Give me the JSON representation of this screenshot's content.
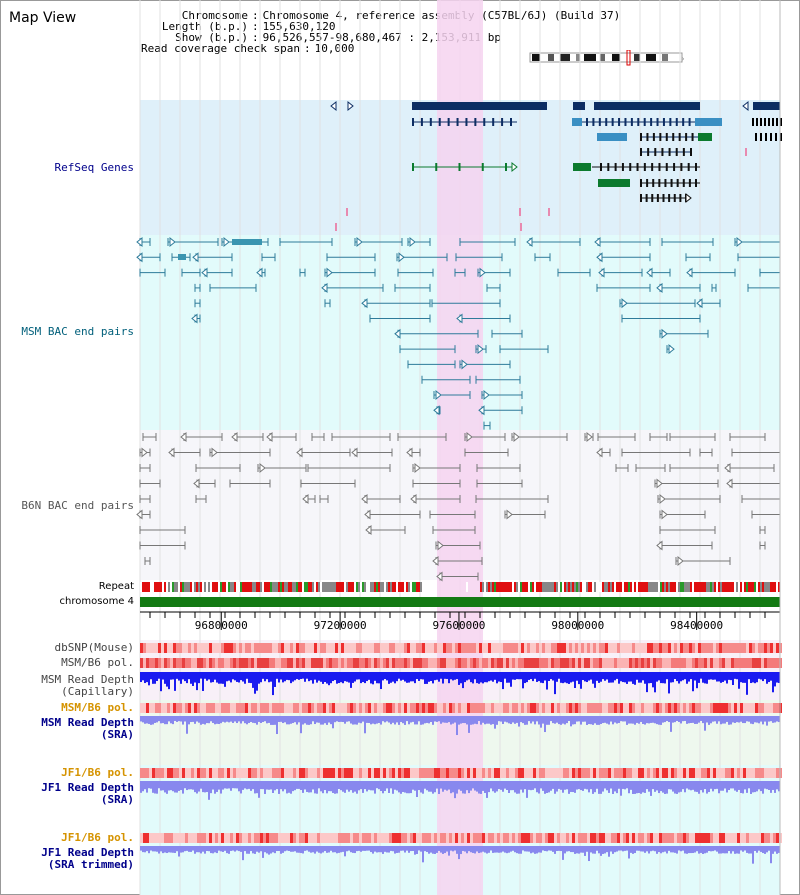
{
  "page": {
    "title": "Map View"
  },
  "header": {
    "rows": [
      {
        "key": "Chromosome",
        "value": "Chromosome 4, reference assembly (C57BL/6J) (Build 37)"
      },
      {
        "key": "Length (b.p.)",
        "value": "155,630,120"
      },
      {
        "key": "Show (b.p.)",
        "value": "96,526,557-98,680,467 : 2,153,911 bp"
      },
      {
        "key": "Read coverage check span",
        "value": "10,000"
      }
    ]
  },
  "tracks": {
    "refseq": {
      "label": "RefSeq Genes"
    },
    "msm_bac": {
      "label": "MSM BAC end pairs"
    },
    "b6n_bac": {
      "label": "B6N BAC end pairs"
    },
    "repeat": {
      "label": "Repeat"
    },
    "chromosome": {
      "label": "chromosome 4"
    },
    "dbsnp": {
      "label": "dbSNP(Mouse)"
    },
    "msm_b6_pol": {
      "label": "MSM/B6 pol."
    },
    "msm_depth_cap": {
      "label_line1": "MSM Read Depth",
      "label_line2": "(Capillary)"
    },
    "msm_b6_pol2": {
      "label": "MSM/B6 pol."
    },
    "msm_depth_sra": {
      "label_line1": "MSM Read Depth",
      "label_line2": "(SRA)"
    },
    "jf1_b6_pol": {
      "label": "JF1/B6 pol."
    },
    "jf1_depth_sra": {
      "label_line1": "JF1 Read Depth",
      "label_line2": "(SRA)"
    },
    "jf1_b6_pol2": {
      "label": "JF1/B6 pol."
    },
    "jf1_depth_trim": {
      "label_line1": "JF1 Read Depth",
      "label_line2": "(SRA trimmed)"
    }
  },
  "axis": {
    "ticks": [
      "96800000",
      "97200000",
      "97600000",
      "98000000",
      "98400000"
    ]
  },
  "colors": {
    "refseq_bg": "#dff0fa",
    "msm_bg": "#e2fbfb",
    "b6n_bg": "#f6f6fa",
    "highlight": "#f6d4f0",
    "gene_dark": "#0d2d63",
    "gene_mid": "#3a8fc3",
    "gene_green": "#0b7a2e",
    "msm_line": "#2e7b9a",
    "b6n_line": "#777777",
    "chromosome_green": "#137a13",
    "depth_blue": "#1a1af0",
    "depth_light": "#8888ee",
    "label_blue": "#00008b",
    "label_teal": "#005f7a",
    "label_orange": "#d59300"
  }
}
